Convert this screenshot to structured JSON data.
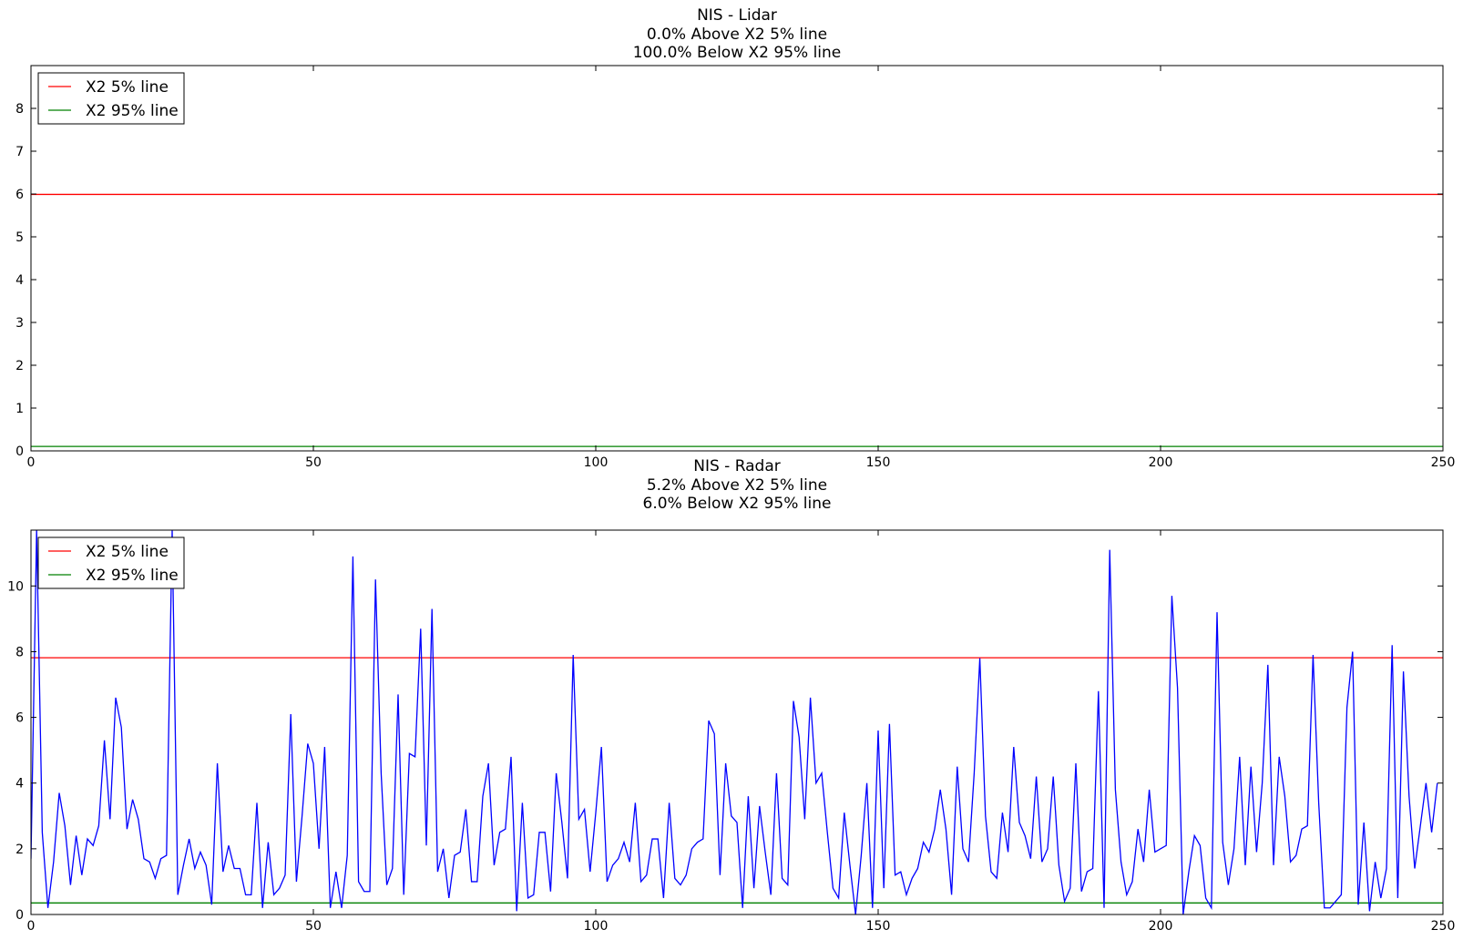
{
  "chart_data": [
    {
      "type": "line",
      "title": [
        "NIS - Lidar",
        "0.0% Above X2  5% line",
        "100.0% Below  X2 95% line"
      ],
      "xlim": [
        0,
        250
      ],
      "ylim": [
        0,
        9
      ],
      "xticks": [
        0,
        50,
        100,
        150,
        200,
        250
      ],
      "yticks": [
        0,
        1,
        2,
        3,
        4,
        5,
        6,
        7,
        8
      ],
      "legend_position": "upper-left",
      "grid": false,
      "series": [
        {
          "name": "X2 5% line",
          "color": "#ff0000",
          "x": [
            0,
            250
          ],
          "y": [
            5.991,
            5.991
          ]
        },
        {
          "name": "X2 95% line",
          "color": "#008000",
          "x": [
            0,
            250
          ],
          "y": [
            0.103,
            0.103
          ]
        }
      ]
    },
    {
      "type": "line",
      "title": [
        "NIS - Radar",
        "5.2% Above X2  5% line",
        "6.0% Below  X2 95% line"
      ],
      "xlim": [
        0,
        250
      ],
      "ylim": [
        0,
        11.7
      ],
      "xticks": [
        0,
        50,
        100,
        150,
        200,
        250
      ],
      "yticks": [
        0,
        2,
        4,
        6,
        8,
        10
      ],
      "legend_position": "upper-left",
      "grid": false,
      "series": [
        {
          "name": "X2 5% line",
          "color": "#ff0000",
          "x": [
            0,
            250
          ],
          "y": [
            7.815,
            7.815
          ]
        },
        {
          "name": "X2 95% line",
          "color": "#008000",
          "x": [
            0,
            250
          ],
          "y": [
            0.352,
            0.352
          ]
        },
        {
          "color": "#0000ff",
          "x_start": 0,
          "x_step": 1,
          "values": [
            1.7,
            11.7,
            2.5,
            0.2,
            1.6,
            3.7,
            2.7,
            0.9,
            2.4,
            1.2,
            2.3,
            2.1,
            2.7,
            5.3,
            2.9,
            6.6,
            5.7,
            2.6,
            3.5,
            2.9,
            1.7,
            1.6,
            1.1,
            1.7,
            1.8,
            11.7,
            0.6,
            1.5,
            2.3,
            1.4,
            1.9,
            1.5,
            0.3,
            4.6,
            1.3,
            2.1,
            1.4,
            1.4,
            0.6,
            0.6,
            3.4,
            0.2,
            2.2,
            0.6,
            0.8,
            1.2,
            6.1,
            1.0,
            3.0,
            5.2,
            4.6,
            2.0,
            5.1,
            0.2,
            1.3,
            0.2,
            1.8,
            10.9,
            1.0,
            0.7,
            0.7,
            10.2,
            4.3,
            0.9,
            1.4,
            6.7,
            0.6,
            4.9,
            4.8,
            8.7,
            2.1,
            9.3,
            1.3,
            2.0,
            0.5,
            1.8,
            1.9,
            3.2,
            1.0,
            1.0,
            3.6,
            4.6,
            1.5,
            2.5,
            2.6,
            4.8,
            0.1,
            3.4,
            0.5,
            0.6,
            2.5,
            2.5,
            0.7,
            4.3,
            2.8,
            1.1,
            7.9,
            2.9,
            3.2,
            1.3,
            3.1,
            5.1,
            1.0,
            1.5,
            1.7,
            2.2,
            1.6,
            3.4,
            1.0,
            1.2,
            2.3,
            2.3,
            0.5,
            3.4,
            1.1,
            0.9,
            1.2,
            2.0,
            2.2,
            2.3,
            5.9,
            5.5,
            1.2,
            4.6,
            3.0,
            2.8,
            0.2,
            3.6,
            0.8,
            3.3,
            1.9,
            0.6,
            4.3,
            1.1,
            0.9,
            6.5,
            5.4,
            2.9,
            6.6,
            4.0,
            4.3,
            2.5,
            0.8,
            0.5,
            3.1,
            1.5,
            0.0,
            1.8,
            4.0,
            0.2,
            5.6,
            0.8,
            5.8,
            1.2,
            1.3,
            0.6,
            1.1,
            1.4,
            2.2,
            1.9,
            2.6,
            3.8,
            2.6,
            0.6,
            4.5,
            2.0,
            1.6,
            4.3,
            7.8,
            3.0,
            1.3,
            1.1,
            3.1,
            1.9,
            5.1,
            2.8,
            2.4,
            1.7,
            4.2,
            1.6,
            2.0,
            4.2,
            1.5,
            0.4,
            0.8,
            4.6,
            0.7,
            1.3,
            1.4,
            6.8,
            0.2,
            11.1,
            3.8,
            1.6,
            0.6,
            1.0,
            2.6,
            1.6,
            3.8,
            1.9,
            2.0,
            2.1,
            9.7,
            6.9,
            0.0,
            1.3,
            2.4,
            2.1,
            0.5,
            0.2,
            9.2,
            2.2,
            0.9,
            2.0,
            4.8,
            1.5,
            4.5,
            1.9,
            4.0,
            7.6,
            1.5,
            4.8,
            3.6,
            1.6,
            1.8,
            2.6,
            2.7,
            7.9,
            3.4,
            0.2,
            0.2,
            0.4,
            0.6,
            6.3,
            8.0,
            0.3,
            2.8,
            0.1,
            1.6,
            0.5,
            1.4,
            8.2,
            0.5,
            7.4,
            3.6,
            1.4,
            2.7,
            4.0,
            2.5,
            4.0
          ]
        }
      ]
    }
  ]
}
